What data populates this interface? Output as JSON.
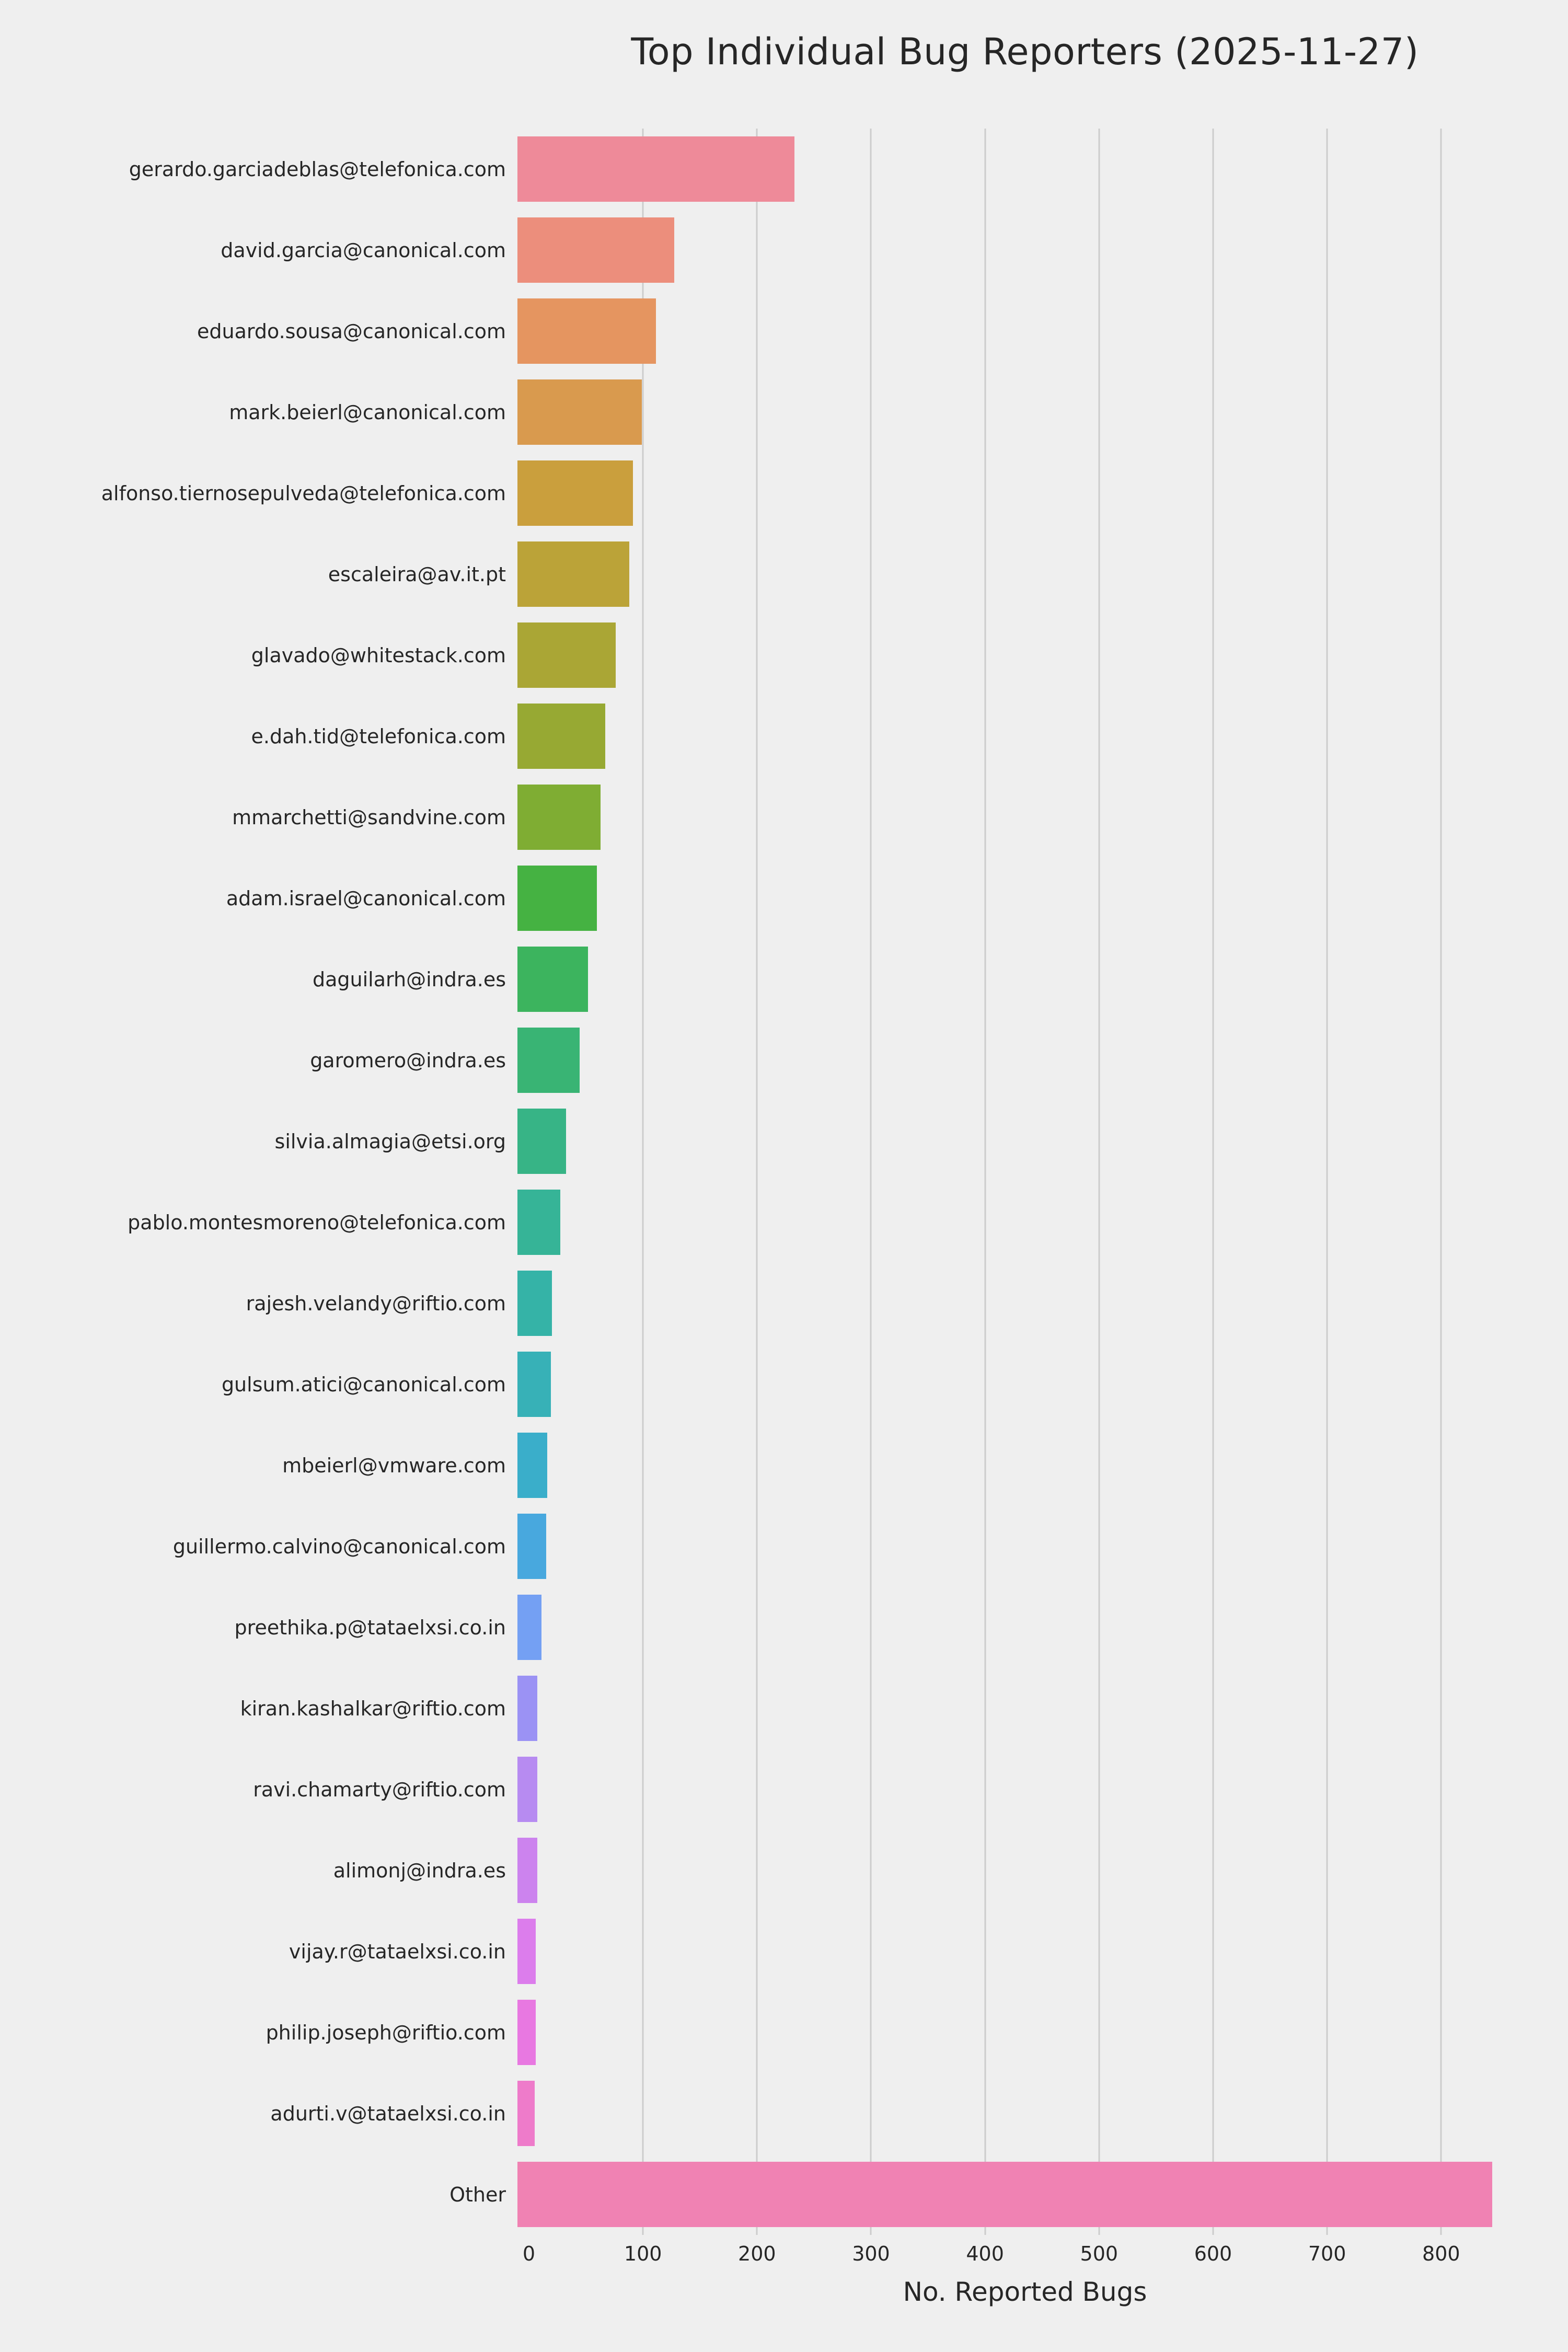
{
  "style": {
    "background_color": "#efefef",
    "grid_color": "#cccccc",
    "text_color": "#262626"
  },
  "chart_data": {
    "type": "bar",
    "orientation": "horizontal",
    "title": "Top Individual Bug Reporters (2025-11-27)",
    "xlabel": "No. Reported Bugs",
    "ylabel": "",
    "xlim": [
      0,
      870
    ],
    "x_ticks": [
      0,
      100,
      200,
      300,
      400,
      500,
      600,
      700,
      800
    ],
    "grid": true,
    "legend": false,
    "categories": [
      "gerardo.garciadeblas@telefonica.com",
      "david.garcia@canonical.com",
      "eduardo.sousa@canonical.com",
      "mark.beierl@canonical.com",
      "alfonso.tiernosepulveda@telefonica.com",
      "escaleira@av.it.pt",
      "glavado@whitestack.com",
      "e.dah.tid@telefonica.com",
      "mmarchetti@sandvine.com",
      "adam.israel@canonical.com",
      "daguilarh@indra.es",
      "garomero@indra.es",
      "silvia.almagia@etsi.org",
      "pablo.montesmoreno@telefonica.com",
      "rajesh.velandy@riftio.com",
      "gulsum.atici@canonical.com",
      "mbeierl@vmware.com",
      "guillermo.calvino@canonical.com",
      "preethika.p@tataelxsi.co.in",
      "kiran.kashalkar@riftio.com",
      "ravi.chamarty@riftio.com",
      "alimonj@indra.es",
      "vijay.r@tataelxsi.co.in",
      "philip.joseph@riftio.com",
      "adurti.v@tataelxsi.co.in",
      "Other"
    ],
    "values": [
      240,
      136,
      120,
      108,
      100,
      97,
      85,
      76,
      72,
      69,
      61,
      54,
      42,
      37,
      30,
      29,
      26,
      25,
      21,
      17,
      17,
      17,
      16,
      16,
      15,
      845
    ],
    "colors": [
      "#ee8a99",
      "#ec8e7c",
      "#e59560",
      "#d99a4e",
      "#ca9f3d",
      "#bba338",
      "#aaa635",
      "#97a933",
      "#7fad33",
      "#45b242",
      "#3cb45e",
      "#39b474",
      "#37b486",
      "#36b497",
      "#35b3a7",
      "#37b1b7",
      "#3aaeca",
      "#48a8de",
      "#74a0f3",
      "#9b92f4",
      "#b78bf1",
      "#cc83ee",
      "#dc7dec",
      "#e878e1",
      "#ee7bca",
      "#f082b3"
    ]
  }
}
